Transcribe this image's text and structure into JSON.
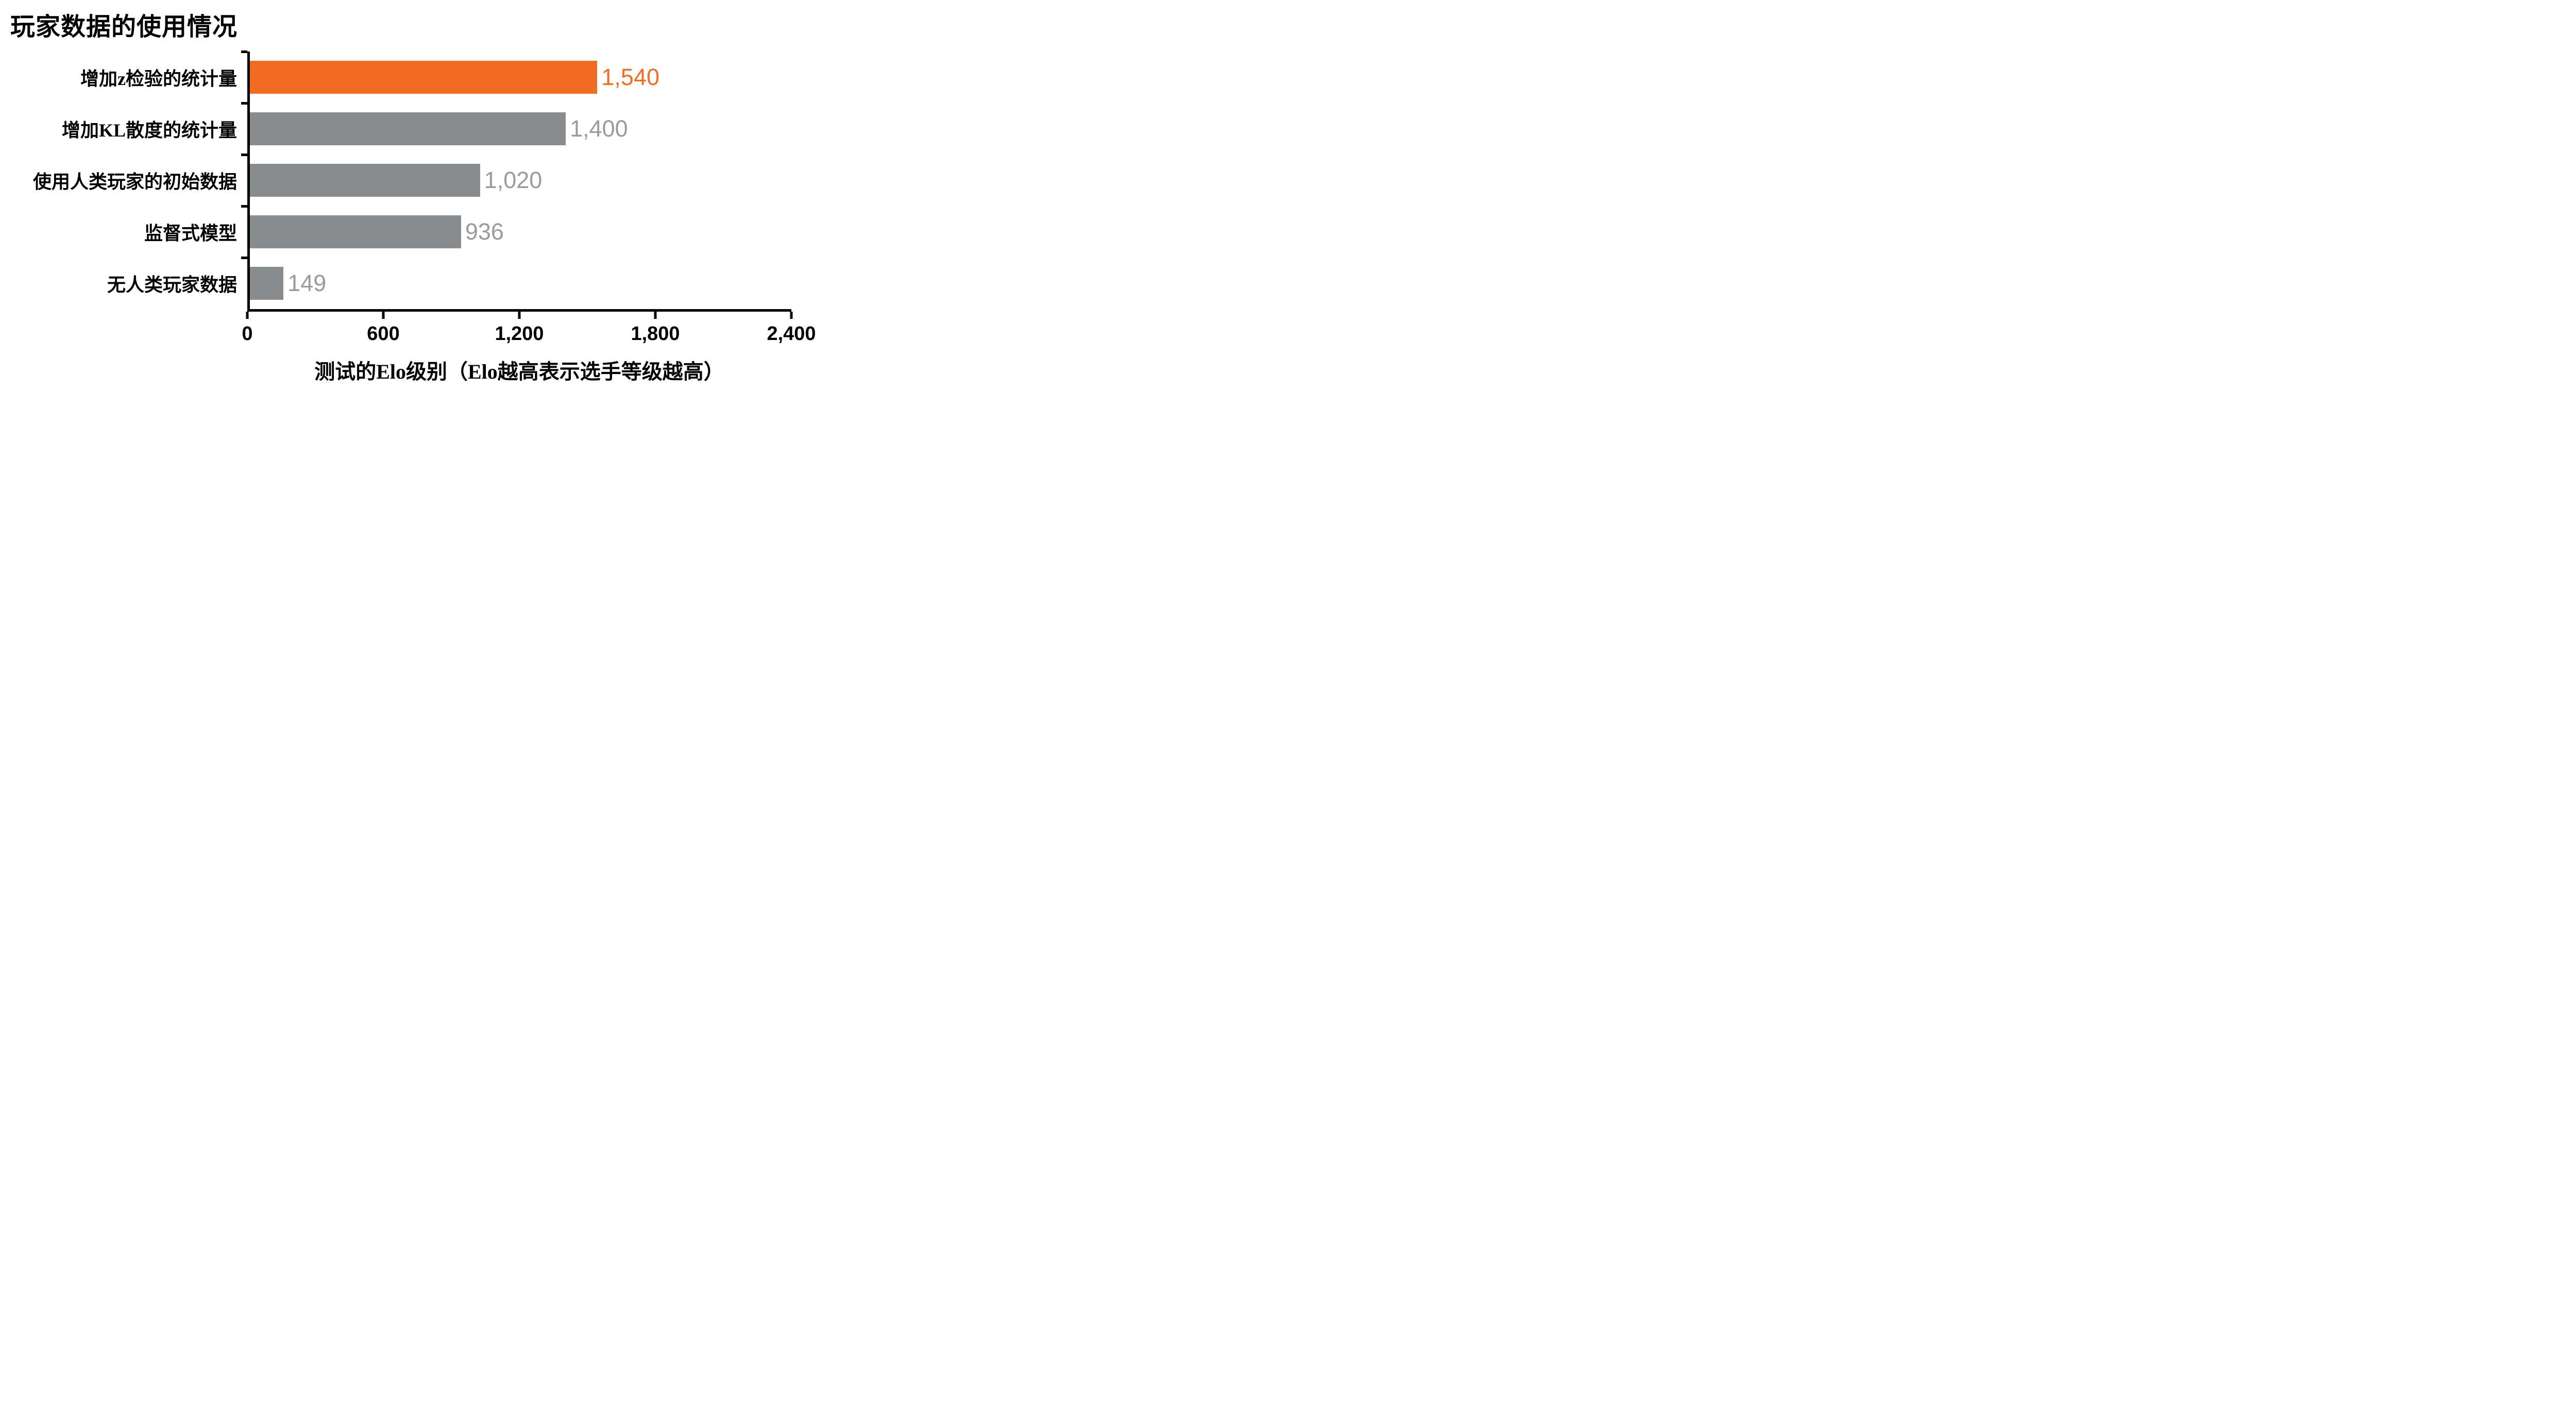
{
  "title": "玩家数据的使用情况",
  "colors": {
    "highlight_bar": "#f26c21",
    "default_bar": "#8a8d8e",
    "highlight_label": "#f26c21",
    "default_label": "#9b9b9b",
    "axis": "#000000"
  },
  "chart_data": {
    "type": "bar",
    "orientation": "horizontal",
    "title": "玩家数据的使用情况",
    "categories": [
      "增加z检验的统计量",
      "增加KL散度的统计量",
      "使用人类玩家的初始数据",
      "监督式模型",
      "无人类玩家数据"
    ],
    "values": [
      1540,
      1400,
      1020,
      936,
      149
    ],
    "value_labels": [
      "1,540",
      "1,400",
      "1,020",
      "936",
      "149"
    ],
    "highlight_index": 0,
    "xlabel": "测试的Elo级别（Elo越高表示选手等级越高）",
    "xlim": [
      0,
      2400
    ],
    "xticks": [
      0,
      600,
      1200,
      1800,
      2400
    ],
    "xtick_labels": [
      "0",
      "600",
      "1,200",
      "1,800",
      "2,400"
    ],
    "legend": "none",
    "grid": false
  }
}
